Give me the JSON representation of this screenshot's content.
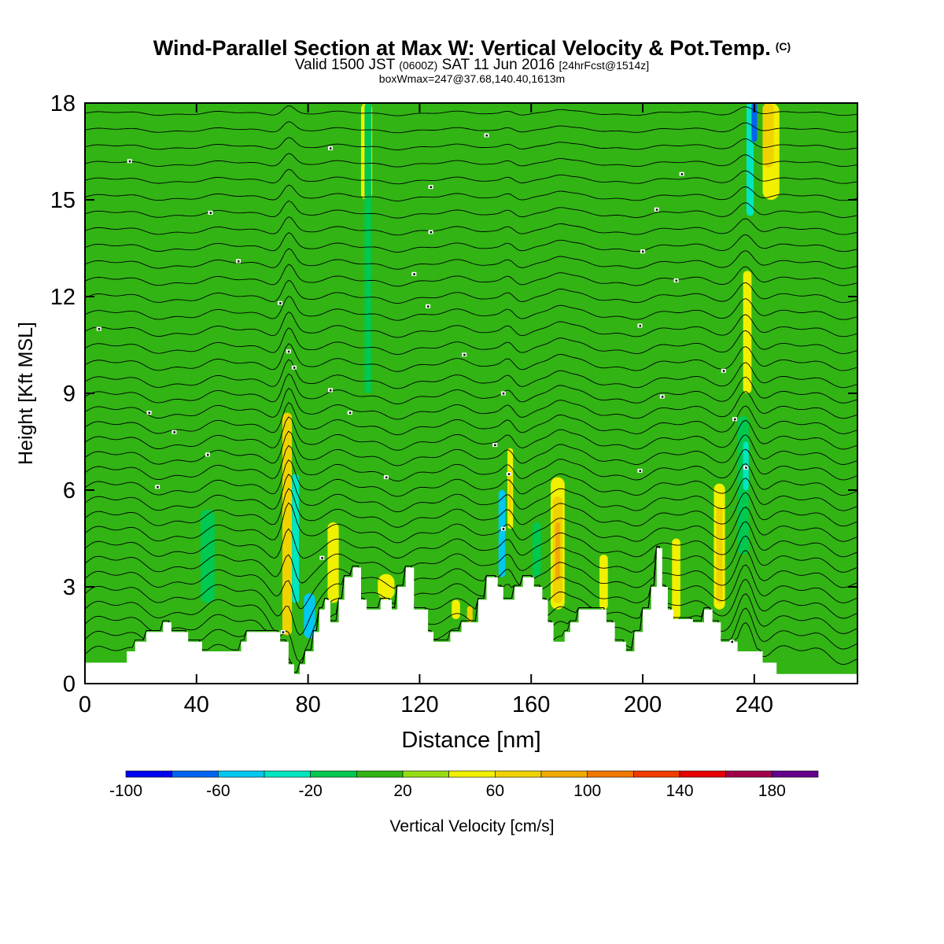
{
  "title": {
    "main": "Wind-Parallel Section at Max W: Vertical Velocity & Pot.Temp.",
    "mark": "(C)",
    "valid_prefix": "Valid 1500 JST",
    "valid_utc": "(0600Z)",
    "valid_date": "SAT 11 Jun 2016",
    "forecast": "[24hrFcst@1514z]",
    "box_info": "boxWmax=247@37.68,140.40,1613m"
  },
  "colors": {
    "levels": [
      "#0000f0",
      "#0064f0",
      "#00c8f0",
      "#00e6c0",
      "#00c850",
      "#32b414",
      "#96dc14",
      "#f0f000",
      "#f0d200",
      "#f0aa00",
      "#f07800",
      "#f03c00",
      "#e60000",
      "#a0004a",
      "#64008c"
    ],
    "background_green": "#32b414",
    "terrain": "#ffffff"
  },
  "chart_data": {
    "type": "heatmap",
    "xlabel": "Distance [nm]",
    "ylabel": "Height [Kft MSL]",
    "xlim": [
      0,
      277
    ],
    "ylim": [
      0,
      18
    ],
    "xticks": [
      0,
      40,
      80,
      120,
      160,
      200,
      240
    ],
    "yticks": [
      0,
      3,
      6,
      9,
      12,
      15,
      18
    ],
    "colorbar": {
      "label": "Vertical Velocity [cm/s]",
      "boundaries": [
        -100,
        -80,
        -60,
        -40,
        -20,
        0,
        20,
        40,
        60,
        80,
        100,
        120,
        140,
        160,
        180,
        200
      ],
      "tick_labels": [
        -100,
        -60,
        -20,
        20,
        60,
        100,
        140,
        180
      ]
    },
    "terrain_kft": [
      [
        0,
        0.65
      ],
      [
        15,
        0.65
      ],
      [
        15,
        1.0
      ],
      [
        18,
        1.0
      ],
      [
        18,
        1.3
      ],
      [
        22,
        1.3
      ],
      [
        22,
        1.6
      ],
      [
        28,
        1.6
      ],
      [
        28,
        1.9
      ],
      [
        31,
        1.9
      ],
      [
        31,
        1.6
      ],
      [
        37,
        1.6
      ],
      [
        37,
        1.3
      ],
      [
        42,
        1.3
      ],
      [
        42,
        1.0
      ],
      [
        56,
        1.0
      ],
      [
        56,
        1.3
      ],
      [
        58,
        1.3
      ],
      [
        58,
        1.6
      ],
      [
        70,
        1.6
      ],
      [
        70,
        1.3
      ],
      [
        73,
        1.3
      ],
      [
        73,
        0.6
      ],
      [
        75,
        0.6
      ],
      [
        75,
        0.3
      ],
      [
        77,
        0.3
      ],
      [
        77,
        0.6
      ],
      [
        79,
        0.6
      ],
      [
        79,
        1.0
      ],
      [
        82,
        1.0
      ],
      [
        82,
        1.6
      ],
      [
        84,
        1.6
      ],
      [
        84,
        2.3
      ],
      [
        86,
        2.3
      ],
      [
        86,
        2.6
      ],
      [
        88,
        2.6
      ],
      [
        88,
        1.9
      ],
      [
        91,
        1.9
      ],
      [
        91,
        2.6
      ],
      [
        93,
        2.6
      ],
      [
        93,
        3.3
      ],
      [
        96,
        3.3
      ],
      [
        96,
        3.6
      ],
      [
        99,
        3.6
      ],
      [
        99,
        2.6
      ],
      [
        101,
        2.6
      ],
      [
        101,
        2.3
      ],
      [
        106,
        2.3
      ],
      [
        106,
        2.6
      ],
      [
        110,
        2.6
      ],
      [
        110,
        2.3
      ],
      [
        112,
        2.3
      ],
      [
        112,
        3.0
      ],
      [
        115,
        3.0
      ],
      [
        115,
        3.6
      ],
      [
        118,
        3.6
      ],
      [
        118,
        2.3
      ],
      [
        123,
        2.3
      ],
      [
        123,
        1.6
      ],
      [
        125,
        1.6
      ],
      [
        125,
        1.3
      ],
      [
        131,
        1.3
      ],
      [
        131,
        1.6
      ],
      [
        135,
        1.6
      ],
      [
        135,
        1.9
      ],
      [
        141,
        1.9
      ],
      [
        141,
        2.6
      ],
      [
        144,
        2.6
      ],
      [
        144,
        3.3
      ],
      [
        148,
        3.3
      ],
      [
        148,
        3.0
      ],
      [
        150,
        3.0
      ],
      [
        150,
        2.6
      ],
      [
        154,
        2.6
      ],
      [
        154,
        3.0
      ],
      [
        157,
        3.0
      ],
      [
        157,
        3.3
      ],
      [
        161,
        3.3
      ],
      [
        161,
        3.0
      ],
      [
        164,
        3.0
      ],
      [
        164,
        2.6
      ],
      [
        166,
        2.6
      ],
      [
        166,
        1.9
      ],
      [
        168,
        1.9
      ],
      [
        168,
        1.3
      ],
      [
        172,
        1.3
      ],
      [
        172,
        1.6
      ],
      [
        174,
        1.6
      ],
      [
        174,
        1.9
      ],
      [
        177,
        1.9
      ],
      [
        177,
        2.3
      ],
      [
        187,
        2.3
      ],
      [
        187,
        1.9
      ],
      [
        190,
        1.9
      ],
      [
        190,
        1.3
      ],
      [
        194,
        1.3
      ],
      [
        194,
        1.0
      ],
      [
        197,
        1.0
      ],
      [
        197,
        1.6
      ],
      [
        200,
        1.6
      ],
      [
        200,
        2.3
      ],
      [
        203,
        2.3
      ],
      [
        203,
        3.0
      ],
      [
        205,
        3.0
      ],
      [
        205,
        4.2
      ],
      [
        207,
        4.2
      ],
      [
        207,
        3.0
      ],
      [
        209,
        3.0
      ],
      [
        209,
        2.3
      ],
      [
        211,
        2.3
      ],
      [
        211,
        2.0
      ],
      [
        218,
        2.0
      ],
      [
        218,
        1.9
      ],
      [
        222,
        1.9
      ],
      [
        222,
        2.3
      ],
      [
        225,
        2.3
      ],
      [
        225,
        1.9
      ],
      [
        228,
        1.9
      ],
      [
        228,
        1.3
      ],
      [
        234,
        1.3
      ],
      [
        234,
        1.0
      ],
      [
        243,
        1.0
      ],
      [
        243,
        0.65
      ],
      [
        248,
        0.65
      ],
      [
        248,
        0.3
      ],
      [
        277,
        0.3
      ]
    ],
    "features": [
      {
        "x": 72,
        "y0": 1.5,
        "y1": 7.1,
        "w": 1.5,
        "value": 150
      },
      {
        "x": 72.5,
        "y0": 1.5,
        "y1": 8.4,
        "w": 3.4,
        "value": 60
      },
      {
        "x": 75.5,
        "y0": 2.5,
        "y1": 6.5,
        "w": 2.5,
        "value": -40
      },
      {
        "x": 80.5,
        "y0": 1.4,
        "y1": 2.8,
        "w": 4.0,
        "value": -60
      },
      {
        "x": 89,
        "y0": 2.5,
        "y1": 5.0,
        "w": 4.0,
        "value": 40
      },
      {
        "x": 101,
        "y0": 15.0,
        "y1": 18.0,
        "w": 4.0,
        "value": 40
      },
      {
        "x": 101.5,
        "y0": 9.0,
        "y1": 18.0,
        "w": 2.5,
        "value": -20
      },
      {
        "x": 108,
        "y0": 2.6,
        "y1": 3.4,
        "w": 6.0,
        "value": 40
      },
      {
        "x": 133,
        "y0": 2.0,
        "y1": 2.6,
        "w": 3.0,
        "value": 40
      },
      {
        "x": 138,
        "y0": 1.9,
        "y1": 2.4,
        "w": 2.0,
        "value": 60
      },
      {
        "x": 149.5,
        "y0": 3.3,
        "y1": 6.0,
        "w": 2.4,
        "value": -60
      },
      {
        "x": 152.5,
        "y0": 4.8,
        "y1": 7.3,
        "w": 2.0,
        "value": 40
      },
      {
        "x": 152.5,
        "y0": 5.2,
        "y1": 6.6,
        "w": 1.0,
        "value": 60
      },
      {
        "x": 162,
        "y0": 3.3,
        "y1": 5.0,
        "w": 3.0,
        "value": -20
      },
      {
        "x": 169.5,
        "y0": 2.3,
        "y1": 6.4,
        "w": 5.0,
        "value": 40
      },
      {
        "x": 169.5,
        "y0": 2.5,
        "y1": 5.8,
        "w": 3.4,
        "value": 60
      },
      {
        "x": 169.5,
        "y0": 3.2,
        "y1": 5.0,
        "w": 1.6,
        "value": 80
      },
      {
        "x": 186,
        "y0": 2.3,
        "y1": 4.0,
        "w": 3.0,
        "value": 40
      },
      {
        "x": 212,
        "y0": 2.0,
        "y1": 4.5,
        "w": 3.0,
        "value": 40
      },
      {
        "x": 227.5,
        "y0": 2.3,
        "y1": 6.2,
        "w": 4.0,
        "value": 40
      },
      {
        "x": 227.5,
        "y0": 2.5,
        "y1": 5.5,
        "w": 2.2,
        "value": 60
      },
      {
        "x": 236,
        "y0": 4.0,
        "y1": 8.3,
        "w": 4.0,
        "value": -20
      },
      {
        "x": 237,
        "y0": 6.0,
        "y1": 7.5,
        "w": 2.0,
        "value": -40
      },
      {
        "x": 237.5,
        "y0": 9.0,
        "y1": 12.8,
        "w": 3.0,
        "value": 40
      },
      {
        "x": 238.5,
        "y0": 14.5,
        "y1": 18.0,
        "w": 2.6,
        "value": -40
      },
      {
        "x": 240,
        "y0": 16.8,
        "y1": 18.0,
        "w": 2.0,
        "value": -80
      },
      {
        "x": 246,
        "y0": 15.0,
        "y1": 18.0,
        "w": 6.0,
        "value": 40
      },
      {
        "x": 245,
        "y0": 16.0,
        "y1": 18.0,
        "w": 4.0,
        "value": 60
      },
      {
        "x": 44,
        "y0": 2.5,
        "y1": 5.4,
        "w": 5.0,
        "value": -20
      },
      {
        "x": 30,
        "y0": 3.5,
        "y1": 6.5,
        "w": 8.0,
        "value": 0
      },
      {
        "x": 60,
        "y0": 2.2,
        "y1": 5.5,
        "w": 6.0,
        "value": 0
      }
    ],
    "isentrope_labels": [
      {
        "x": 16,
        "y": 16.2
      },
      {
        "x": 45,
        "y": 14.6
      },
      {
        "x": 55,
        "y": 13.1
      },
      {
        "x": 88,
        "y": 16.6
      },
      {
        "x": 5,
        "y": 11.0
      },
      {
        "x": 70,
        "y": 11.8
      },
      {
        "x": 73,
        "y": 10.3
      },
      {
        "x": 75,
        "y": 9.8
      },
      {
        "x": 23,
        "y": 8.4
      },
      {
        "x": 32,
        "y": 7.8
      },
      {
        "x": 44,
        "y": 7.1
      },
      {
        "x": 26,
        "y": 6.1
      },
      {
        "x": 88,
        "y": 9.1
      },
      {
        "x": 95,
        "y": 8.4
      },
      {
        "x": 108,
        "y": 6.4
      },
      {
        "x": 85,
        "y": 3.9
      },
      {
        "x": 71,
        "y": 1.6
      },
      {
        "x": 118,
        "y": 12.7
      },
      {
        "x": 123,
        "y": 11.7
      },
      {
        "x": 124,
        "y": 15.4
      },
      {
        "x": 124,
        "y": 14.0
      },
      {
        "x": 136,
        "y": 10.2
      },
      {
        "x": 144,
        "y": 17.0
      },
      {
        "x": 150,
        "y": 9.0
      },
      {
        "x": 147,
        "y": 7.4
      },
      {
        "x": 150,
        "y": 4.8
      },
      {
        "x": 152,
        "y": 6.5
      },
      {
        "x": 199,
        "y": 11.1
      },
      {
        "x": 200,
        "y": 13.4
      },
      {
        "x": 205,
        "y": 14.7
      },
      {
        "x": 214,
        "y": 15.8
      },
      {
        "x": 212,
        "y": 12.5
      },
      {
        "x": 207,
        "y": 8.9
      },
      {
        "x": 199,
        "y": 6.6
      },
      {
        "x": 229,
        "y": 9.7
      },
      {
        "x": 233,
        "y": 8.2
      },
      {
        "x": 237,
        "y": 6.7
      },
      {
        "x": 232,
        "y": 1.3
      }
    ]
  }
}
